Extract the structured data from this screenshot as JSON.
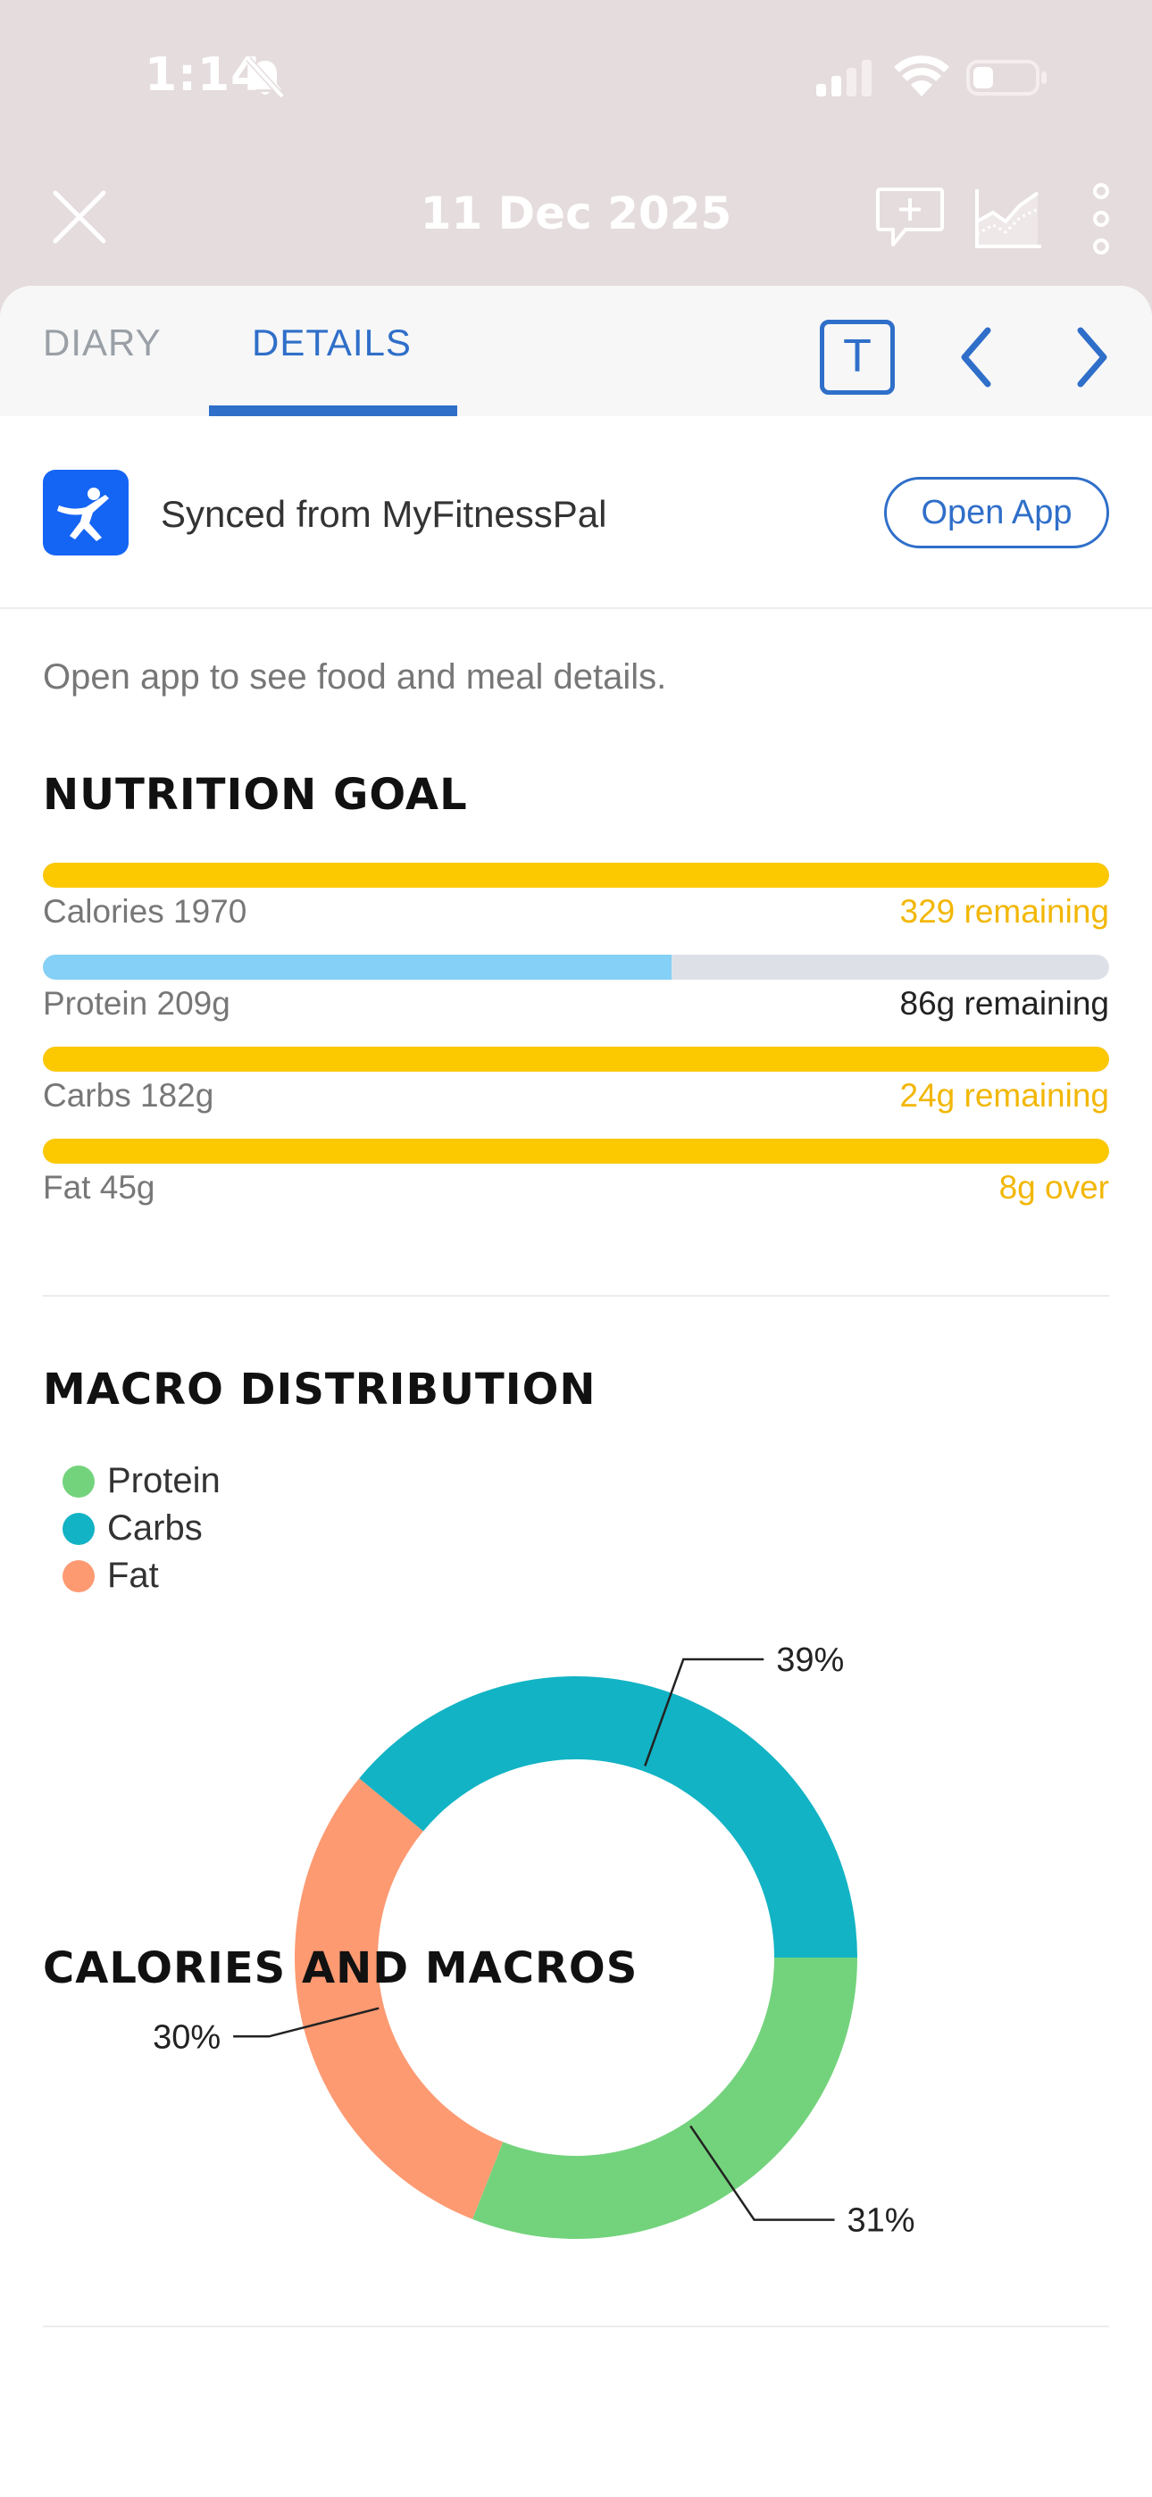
{
  "status_bar": {
    "time": "1:14",
    "battery_level": 0.3
  },
  "nav": {
    "title": "11 Dec 2025"
  },
  "tabs": [
    {
      "label": "DIARY",
      "active": false
    },
    {
      "label": "DETAILS",
      "active": true
    }
  ],
  "toolbar": {
    "text_button": "T"
  },
  "sync": {
    "text": "Synced from MyFitnessPal",
    "button": "Open App"
  },
  "hint": "Open app to see food and meal details.",
  "nutrition_goal": {
    "title": "NUTRITION GOAL",
    "rows": [
      {
        "label": "Calories 1970",
        "remaining": "329 remaining",
        "progress": 1.0,
        "color": "#fcc800",
        "text_color": "#f2b705"
      },
      {
        "label": "Protein 209g",
        "remaining": "86g remaining",
        "progress": 0.59,
        "color": "#84d0f6",
        "text_color": "#222222"
      },
      {
        "label": "Carbs 182g",
        "remaining": "24g remaining",
        "progress": 1.0,
        "color": "#fcc800",
        "text_color": "#f2b705"
      },
      {
        "label": "Fat 45g",
        "remaining": "8g over",
        "progress": 1.0,
        "color": "#fcc800",
        "text_color": "#f2b705"
      }
    ]
  },
  "macro": {
    "title": "MACRO DISTRIBUTION",
    "legend": [
      {
        "label": "Protein",
        "color": "#73d37c"
      },
      {
        "label": "Carbs",
        "color": "#12b3c4"
      },
      {
        "label": "Fat",
        "color": "#fd9a72"
      }
    ]
  },
  "chart_data": {
    "type": "pie",
    "variant": "donut",
    "categories": [
      "Protein",
      "Carbs",
      "Fat"
    ],
    "values": [
      31,
      39,
      30
    ],
    "labels": [
      "31%",
      "39%",
      "30%"
    ],
    "colors": [
      "#73d37c",
      "#12b3c4",
      "#fd9a72"
    ],
    "legend_placement": "top-left"
  },
  "calories_section": {
    "title": "CALORIES AND MACROS"
  },
  "colors": {
    "accent": "#2f6fc9",
    "header_bg": "#e5dcdd",
    "goal_met": "#fcc800"
  }
}
